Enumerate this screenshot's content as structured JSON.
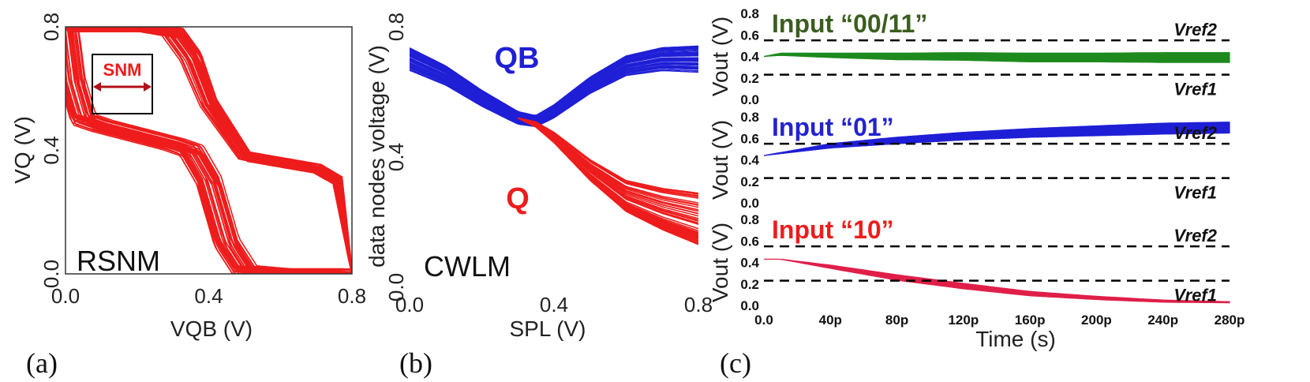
{
  "chart_data": [
    {
      "panel_label": "(a)",
      "type": "line",
      "corner_text": "RSNM",
      "annotation": "SNM",
      "xlabel": "VQB (V)",
      "ylabel": "VQ (V)",
      "xlim": [
        0,
        0.8
      ],
      "ylim": [
        0,
        0.8
      ],
      "xticks": [
        "0.0",
        "0.4",
        "0.8"
      ],
      "yticks": [
        "0.0",
        "0.4",
        "0.8"
      ],
      "series_color": "#ee1c1c",
      "curve_families": [
        {
          "curve": "VQ vs VQB (butterfly wing 1)",
          "x": [
            0.0,
            0.05,
            0.1,
            0.2,
            0.3,
            0.35,
            0.4,
            0.5,
            0.6,
            0.7,
            0.76,
            0.8
          ],
          "y": [
            0.8,
            0.8,
            0.8,
            0.8,
            0.78,
            0.7,
            0.55,
            0.38,
            0.36,
            0.34,
            0.3,
            0.0
          ]
        },
        {
          "curve": "VQ vs VQB (butterfly wing 2)",
          "x": [
            0.0,
            0.02,
            0.05,
            0.1,
            0.2,
            0.3,
            0.35,
            0.4,
            0.45,
            0.5,
            0.6,
            0.8
          ],
          "y": [
            0.8,
            0.62,
            0.5,
            0.48,
            0.45,
            0.42,
            0.4,
            0.3,
            0.1,
            0.01,
            0.0,
            0.0
          ]
        }
      ],
      "snm_box": {
        "x": [
          0.07,
          0.27
        ],
        "y": [
          0.53,
          0.73
        ]
      }
    },
    {
      "panel_label": "(b)",
      "type": "line",
      "corner_text": "CWLM",
      "xlabel": "SPL (V)",
      "ylabel": "data nodes voltage (V)",
      "xlim": [
        0,
        0.8
      ],
      "ylim": [
        0,
        0.8
      ],
      "xticks": [
        "0.0",
        "0.4",
        "0.8"
      ],
      "yticks": [
        "0.0",
        "0.4",
        "0.8"
      ],
      "series": [
        {
          "name": "QB",
          "color": "#1f1fd6",
          "x": [
            0.0,
            0.1,
            0.2,
            0.3,
            0.35,
            0.4,
            0.5,
            0.6,
            0.7,
            0.8
          ],
          "y": [
            0.7,
            0.65,
            0.58,
            0.52,
            0.51,
            0.54,
            0.62,
            0.68,
            0.7,
            0.7
          ]
        },
        {
          "name": "Q",
          "color": "#ee1c1c",
          "x": [
            0.3,
            0.35,
            0.4,
            0.5,
            0.6,
            0.7,
            0.8
          ],
          "y": [
            0.52,
            0.5,
            0.46,
            0.36,
            0.28,
            0.24,
            0.21
          ]
        }
      ]
    },
    {
      "panel_label": "(c)",
      "type": "line",
      "xlabel": "Time (s)",
      "ylabel": "Vout (V)",
      "xlim": [
        0,
        280
      ],
      "ylim": [
        0,
        0.8
      ],
      "xticks": [
        "0.0",
        "40p",
        "80p",
        "120p",
        "160p",
        "200p",
        "240p",
        "280p"
      ],
      "yticks": [
        "0.0",
        "0.2",
        "0.4",
        "0.6",
        "0.8"
      ],
      "reference_lines": [
        {
          "name": "Vref2",
          "y": 0.55
        },
        {
          "name": "Vref1",
          "y": 0.23
        }
      ],
      "subplots": [
        {
          "title": "Input “00/11”",
          "color": "#1e8a1e",
          "title_color": "#3a5e1e",
          "x": [
            0,
            10,
            40,
            80,
            120,
            160,
            200,
            240,
            280
          ],
          "y": [
            0.4,
            0.42,
            0.41,
            0.4,
            0.4,
            0.39,
            0.39,
            0.39,
            0.39
          ],
          "spread": [
            0.0,
            0.01,
            0.02,
            0.03,
            0.035,
            0.04,
            0.04,
            0.045,
            0.045
          ]
        },
        {
          "title": "Input “01”",
          "color": "#1f1fd6",
          "title_color": "#2323d0",
          "x": [
            0,
            40,
            80,
            120,
            160,
            200,
            240,
            280
          ],
          "y": [
            0.44,
            0.53,
            0.58,
            0.62,
            0.65,
            0.67,
            0.69,
            0.7
          ],
          "spread": [
            0.0,
            0.02,
            0.03,
            0.035,
            0.04,
            0.045,
            0.05,
            0.05
          ]
        },
        {
          "title": "Input “10”",
          "color": "#e0204a",
          "title_color": "#ee1c1c",
          "x": [
            0,
            10,
            40,
            80,
            120,
            160,
            200,
            240,
            280
          ],
          "y": [
            0.43,
            0.43,
            0.36,
            0.26,
            0.18,
            0.11,
            0.07,
            0.04,
            0.03
          ],
          "spread": [
            0.0,
            0.0,
            0.015,
            0.025,
            0.025,
            0.02,
            0.015,
            0.01,
            0.005
          ]
        }
      ]
    }
  ]
}
